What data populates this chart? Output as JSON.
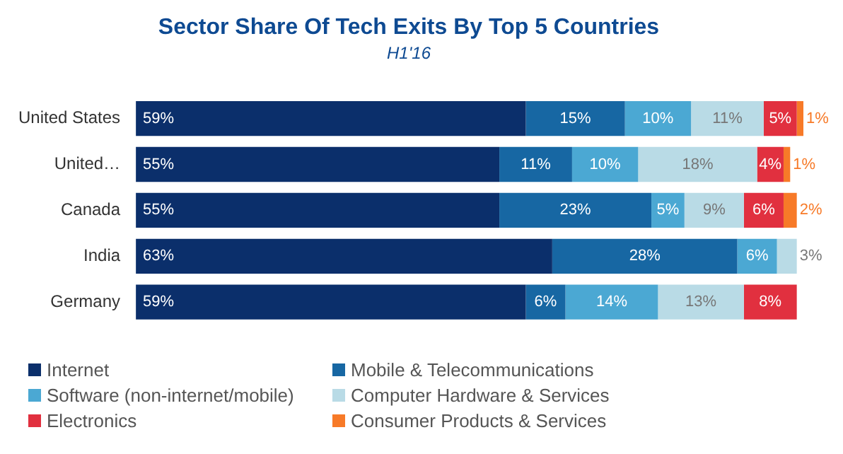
{
  "chart_data": {
    "type": "bar",
    "orientation": "horizontal",
    "stacked": true,
    "title": "Sector Share Of Tech Exits By Top 5 Countries",
    "subtitle": "H1'16",
    "categories": [
      "United States",
      "United…",
      "Canada",
      "India",
      "Germany"
    ],
    "series": [
      {
        "name": "Internet",
        "color": "#0b2f6b",
        "values": [
          59,
          55,
          55,
          63,
          59
        ],
        "value_labels": [
          "59%",
          "55%",
          "55%",
          "63%",
          "59%"
        ]
      },
      {
        "name": "Mobile & Telecommunications",
        "color": "#1767a3",
        "values": [
          15,
          11,
          23,
          28,
          6
        ],
        "value_labels": [
          "15%",
          "11%",
          "23%",
          "28%",
          "6%"
        ]
      },
      {
        "name": "Software (non-internet/mobile)",
        "color": "#4ba8d3",
        "values": [
          10,
          10,
          5,
          6,
          14
        ],
        "value_labels": [
          "10%",
          "10%",
          "5%",
          "6%",
          "14%"
        ]
      },
      {
        "name": "Computer Hardware & Services",
        "color": "#b9dbe6",
        "values": [
          11,
          18,
          9,
          3,
          13
        ],
        "value_labels": [
          "11%",
          "18%",
          "9%",
          "3%",
          "13%"
        ]
      },
      {
        "name": "Electronics",
        "color": "#e1303f",
        "values": [
          5,
          4,
          6,
          null,
          8
        ],
        "value_labels": [
          "5%",
          "4%",
          "6%",
          null,
          "8%"
        ]
      },
      {
        "name": "Consumer Products & Services",
        "color": "#f77a28",
        "values": [
          1,
          1,
          2,
          null,
          null
        ],
        "value_labels": [
          "1%",
          "1%",
          "2%",
          null,
          null
        ]
      }
    ],
    "tick_labels": "y",
    "legend": "bottom left"
  }
}
